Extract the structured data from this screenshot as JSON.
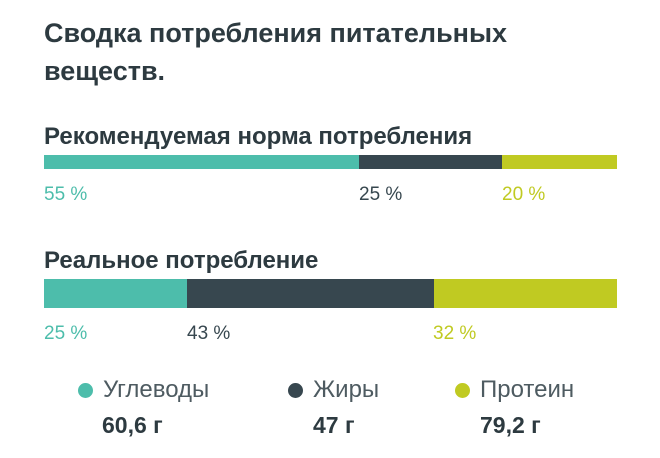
{
  "title": "Сводка потребления питательных веществ.",
  "colors": {
    "carbs": "#4dbdab",
    "fats": "#37474f",
    "protein": "#c0ca22"
  },
  "recommended": {
    "title": "Рекомендуемая норма потребления",
    "carbs_share": 55,
    "fats_share": 25,
    "protein_share": 20,
    "carbs_label": "55 %",
    "fats_label": "25 %",
    "protein_label": "20 %"
  },
  "actual": {
    "title": "Реальное потребление",
    "carbs_share": 25,
    "fats_share": 43,
    "protein_share": 32,
    "carbs_label": "25 %",
    "fats_label": "43 %",
    "protein_label": "32 %"
  },
  "legend": [
    {
      "key": "carbs",
      "label": "Углеводы",
      "amount": "60,6 г"
    },
    {
      "key": "fats",
      "label": "Жиры",
      "amount": "47 г"
    },
    {
      "key": "protein",
      "label": "Протеин",
      "amount": "79,2 г"
    }
  ]
}
